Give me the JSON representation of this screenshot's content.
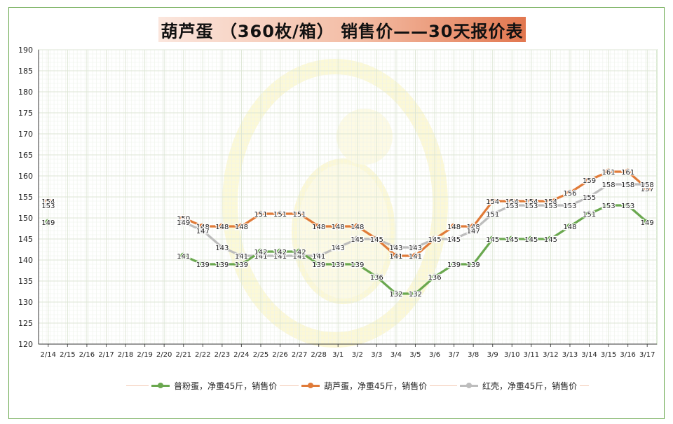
{
  "title": "葫芦蛋 （360枚/箱） 销售价——30天报价表",
  "colors": {
    "series_1": "#6aa84f",
    "series_2": "#e07b39",
    "series_3": "#bdbdbd",
    "frame": "#6aa84f",
    "grid": "#dde6d5"
  },
  "chart_data": {
    "type": "line",
    "title": "葫芦蛋 （360枚/箱） 销售价——30天报价表",
    "x": [
      "2/14",
      "2/15",
      "2/16",
      "2/17",
      "2/18",
      "2/19",
      "2/20",
      "2/21",
      "2/22",
      "2/23",
      "2/24",
      "2/25",
      "2/26",
      "2/27",
      "2/28",
      "3/1",
      "3/2",
      "3/3",
      "3/4",
      "3/5",
      "3/6",
      "3/7",
      "3/8",
      "3/9",
      "3/10",
      "3/11",
      "3/12",
      "3/13",
      "3/14",
      "3/15",
      "3/16",
      "3/17"
    ],
    "y_ticks": [
      120,
      125,
      130,
      135,
      140,
      145,
      150,
      155,
      160,
      165,
      170,
      175,
      180,
      185,
      190
    ],
    "ylim": [
      120,
      190
    ],
    "grid": true,
    "legend_position": "bottom",
    "series": [
      {
        "name": "普粉蛋，净重45斤，销售价",
        "values": [
          149,
          null,
          null,
          null,
          null,
          null,
          null,
          141,
          139,
          139,
          139,
          142,
          142,
          142,
          139,
          139,
          139,
          136,
          132,
          132,
          136,
          139,
          139,
          145,
          145,
          145,
          145,
          148,
          151,
          153,
          153,
          149
        ]
      },
      {
        "name": "葫芦蛋，净重45斤，销售价",
        "values": [
          154,
          null,
          null,
          null,
          null,
          null,
          null,
          150,
          148,
          148,
          148,
          151,
          151,
          151,
          148,
          148,
          148,
          145,
          141,
          141,
          145,
          148,
          148,
          154,
          154,
          154,
          154,
          156,
          159,
          161,
          161,
          157
        ]
      },
      {
        "name": "红壳，净重45斤，销售价",
        "values": [
          153,
          null,
          null,
          null,
          null,
          null,
          null,
          149,
          147,
          143,
          141,
          141,
          141,
          141,
          141,
          143,
          145,
          145,
          143,
          143,
          145,
          145,
          147,
          151,
          153,
          153,
          153,
          153,
          155,
          158,
          158,
          158
        ]
      }
    ]
  }
}
